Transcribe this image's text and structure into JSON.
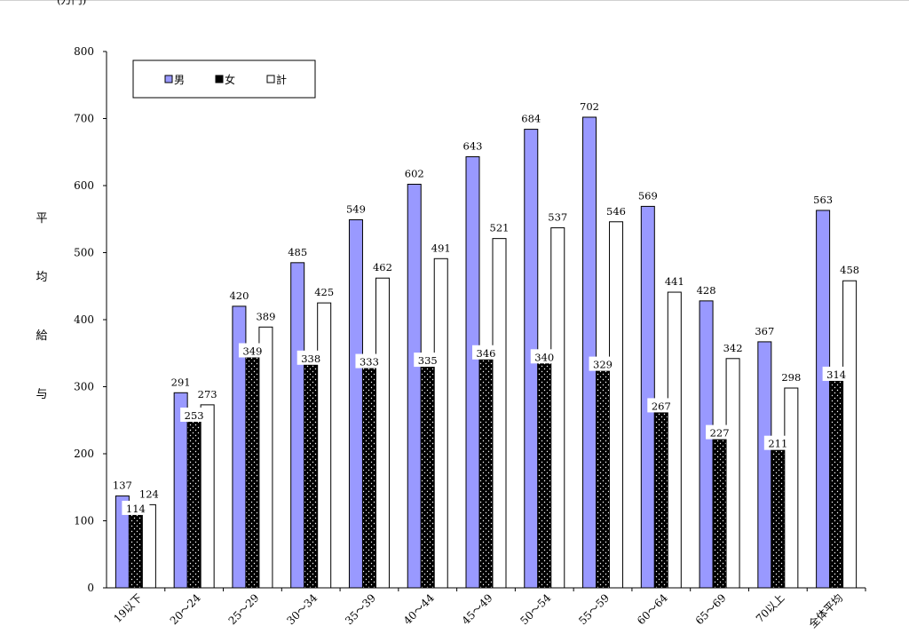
{
  "unit_label": "(万円)",
  "ylabel_chars": [
    "平",
    "均",
    "給",
    "与"
  ],
  "colors": {
    "male": "#9999ff",
    "female": "#000000",
    "total": "#ffffff",
    "axis": "#000000"
  },
  "chart_data": {
    "type": "bar",
    "ylabel": "平均給与",
    "ylim": [
      0,
      800
    ],
    "yticks": [
      0,
      100,
      200,
      300,
      400,
      500,
      600,
      700,
      800
    ],
    "grid": false,
    "legend_position": "top-left",
    "categories": [
      "19以下",
      "20～24",
      "25～29",
      "30～34",
      "35～39",
      "40～44",
      "45～49",
      "50～54",
      "55～59",
      "60～64",
      "65～69",
      "70以上",
      "全体平均"
    ],
    "series": [
      {
        "name": "男",
        "values": [
          137,
          291,
          420,
          485,
          549,
          602,
          643,
          684,
          702,
          569,
          428,
          367,
          563
        ]
      },
      {
        "name": "女",
        "values": [
          114,
          253,
          349,
          338,
          333,
          335,
          346,
          340,
          329,
          267,
          227,
          211,
          314
        ]
      },
      {
        "name": "計",
        "values": [
          124,
          273,
          389,
          425,
          462,
          491,
          521,
          537,
          546,
          441,
          342,
          298,
          458
        ]
      }
    ]
  }
}
